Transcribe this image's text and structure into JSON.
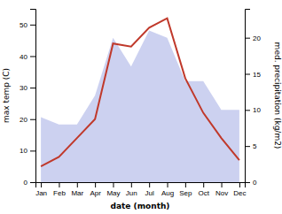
{
  "chart_data": {
    "type": "line",
    "xlabel": "date (month)",
    "ylabel": "max temp (C)",
    "y2label": "med. precipitation (kg/m2)",
    "categories": [
      "Jan",
      "Feb",
      "Mar",
      "Apr",
      "May",
      "Jun",
      "Jul",
      "Aug",
      "Sep",
      "Oct",
      "Nov",
      "Dec"
    ],
    "series": [
      {
        "type": "area",
        "axis": "y2",
        "color": "#b0b8e8",
        "values": [
          9,
          8,
          8,
          12,
          20,
          16,
          21,
          20,
          14,
          14,
          10,
          10
        ]
      },
      {
        "type": "line",
        "color": "#c0392b",
        "values": [
          5,
          8,
          14,
          20,
          44,
          43,
          49,
          52,
          33,
          22,
          14,
          7
        ]
      }
    ],
    "ylim": [
      0,
      55
    ],
    "yticks": [
      0,
      10,
      20,
      30,
      40,
      50
    ],
    "y2lim": [
      0,
      24
    ],
    "y2ticks": [
      0,
      5,
      10,
      15,
      20
    ],
    "grid": false
  }
}
